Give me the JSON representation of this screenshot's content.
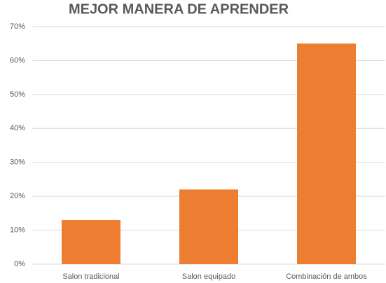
{
  "chart_data": {
    "type": "bar",
    "title": "MEJOR MANERA DE APRENDER",
    "categories": [
      "Salon tradicional",
      "Salon equipado",
      "Combinación de ambos"
    ],
    "values": [
      13,
      22,
      65
    ],
    "color": "#ed7d31",
    "ylim": [
      0,
      70
    ],
    "yticks": [
      {
        "value": 0,
        "label": "0%"
      },
      {
        "value": 10,
        "label": "10%"
      },
      {
        "value": 20,
        "label": "20%"
      },
      {
        "value": 30,
        "label": "30%"
      },
      {
        "value": 40,
        "label": "40%"
      },
      {
        "value": 50,
        "label": "50%"
      },
      {
        "value": 60,
        "label": "60%"
      },
      {
        "value": 70,
        "label": "70%"
      }
    ],
    "grid": true
  }
}
